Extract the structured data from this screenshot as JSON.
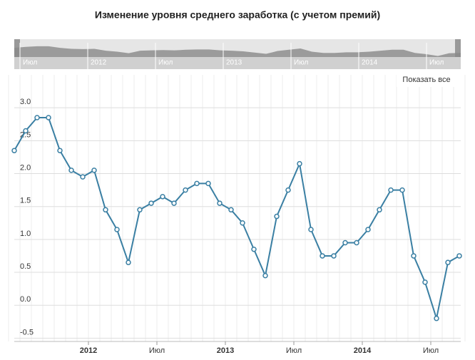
{
  "chart_data": {
    "type": "line",
    "title": "Изменение уровня среднего заработка (с учетом премий)",
    "reset_button": "Показать все",
    "navigator_labels": [
      "Июл",
      "2012",
      "Июл",
      "2013",
      "Июл",
      "2014",
      "Июл"
    ],
    "categories": [
      null,
      null,
      null,
      null,
      null,
      null,
      null,
      "2012",
      null,
      null,
      null,
      null,
      null,
      "Июл",
      null,
      null,
      null,
      null,
      null,
      "2013",
      null,
      null,
      null,
      null,
      null,
      "Июл",
      null,
      null,
      null,
      null,
      null,
      "2014",
      null,
      null,
      null,
      null,
      null,
      "Июл",
      null,
      null
    ],
    "series": [
      {
        "color": "#3a7fa3",
        "values": [
          2.35,
          2.65,
          2.85,
          2.85,
          2.35,
          2.05,
          1.95,
          2.05,
          1.45,
          1.15,
          0.65,
          1.45,
          1.55,
          1.65,
          1.55,
          1.75,
          1.85,
          1.85,
          1.55,
          1.45,
          1.25,
          0.85,
          0.45,
          1.35,
          1.75,
          2.15,
          1.15,
          0.75,
          0.75,
          0.95,
          0.95,
          1.15,
          1.45,
          1.75,
          1.75,
          0.75,
          0.35,
          -0.2,
          0.65,
          0.75
        ]
      }
    ],
    "ylim": [
      -0.55,
      3.5
    ],
    "yticks": [
      {
        "value": -0.5,
        "label": "-0.5"
      },
      {
        "value": 0,
        "label": "0.0"
      },
      0.5,
      {
        "value": 1,
        "label": "1.0"
      },
      1.5,
      {
        "value": 2,
        "label": "2.0"
      },
      2.5,
      {
        "value": 3,
        "label": "3.0"
      }
    ],
    "grid": true
  }
}
